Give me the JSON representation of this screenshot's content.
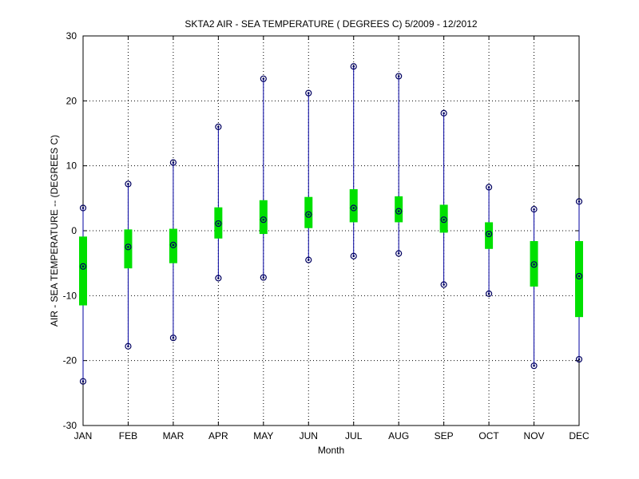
{
  "chart_data": {
    "type": "boxplot",
    "title": "SKTA2  AIR - SEA TEMPERATURE ( DEGREES C) 5/2009 - 12/2012",
    "xlabel": "Month",
    "ylabel": "AIR - SEA TEMPERATURE -- (DEGREES C)",
    "categories": [
      "JAN",
      "FEB",
      "MAR",
      "APR",
      "MAY",
      "JUN",
      "JUL",
      "AUG",
      "SEP",
      "OCT",
      "NOV",
      "DEC"
    ],
    "ylim": [
      -30,
      30
    ],
    "yticks": [
      -30,
      -20,
      -10,
      0,
      10,
      20,
      30
    ],
    "grid": true,
    "series": [
      {
        "min": -23.2,
        "q1": -11.5,
        "median": -5.5,
        "q3": -0.9,
        "max": 3.5
      },
      {
        "min": -17.8,
        "q1": -5.8,
        "median": -2.5,
        "q3": 0.2,
        "max": 7.2
      },
      {
        "min": -16.5,
        "q1": -5.0,
        "median": -2.2,
        "q3": 0.3,
        "max": 10.5
      },
      {
        "min": -7.3,
        "q1": -1.2,
        "median": 1.1,
        "q3": 3.6,
        "max": 16.0
      },
      {
        "min": -7.2,
        "q1": -0.5,
        "median": 1.7,
        "q3": 4.7,
        "max": 23.4
      },
      {
        "min": -4.5,
        "q1": 0.4,
        "median": 2.5,
        "q3": 5.2,
        "max": 21.2
      },
      {
        "min": -3.9,
        "q1": 1.3,
        "median": 3.5,
        "q3": 6.4,
        "max": 25.3
      },
      {
        "min": -3.5,
        "q1": 1.3,
        "median": 3.0,
        "q3": 5.3,
        "max": 23.8
      },
      {
        "min": -8.3,
        "q1": -0.3,
        "median": 1.7,
        "q3": 4.0,
        "max": 18.1
      },
      {
        "min": -9.7,
        "q1": -2.8,
        "median": -0.5,
        "q3": 1.3,
        "max": 6.7
      },
      {
        "min": -20.8,
        "q1": -8.6,
        "median": -5.2,
        "q3": -1.6,
        "max": 3.3
      },
      {
        "min": -19.8,
        "q1": -13.3,
        "median": -7.0,
        "q3": -1.6,
        "max": 4.5
      }
    ],
    "colors": {
      "whisker": "#0000a0",
      "box": "#00e000",
      "marker": "#000060",
      "axis": "#000000"
    }
  }
}
